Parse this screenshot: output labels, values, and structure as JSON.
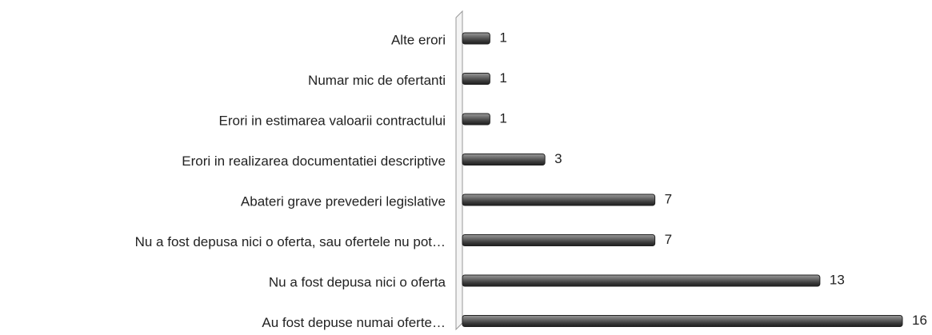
{
  "chart_data": {
    "type": "bar",
    "orientation": "horizontal",
    "categories": [
      "Alte erori",
      "Numar mic de ofertanti",
      "Erori in estimarea valoarii contractului",
      "Erori in realizarea documentatiei descriptive",
      "Abateri grave prevederi legislative",
      "Nu a fost depusa nici o oferta, sau ofertele nu pot…",
      "Nu a fost depusa nici o oferta",
      "Au fost depuse numai oferte…"
    ],
    "values": [
      1,
      1,
      1,
      3,
      7,
      7,
      13,
      16
    ],
    "color": "#555555",
    "xlim": [
      0,
      16
    ]
  }
}
